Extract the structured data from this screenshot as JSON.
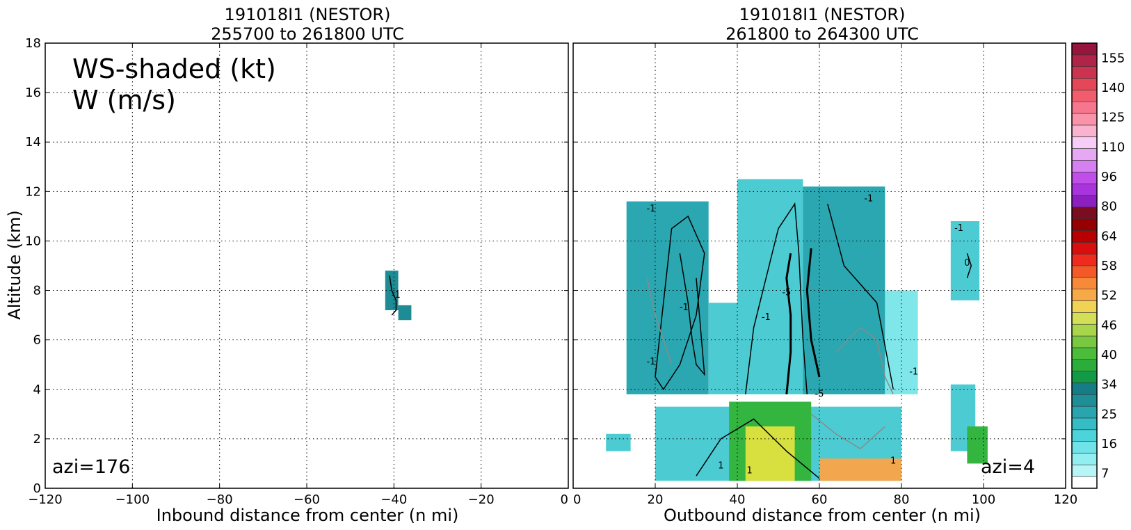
{
  "chart_data": [
    {
      "type": "heatmap",
      "title": "191018I1 (NESTOR)",
      "subtitle": "255700 to 261800 UTC",
      "xlabel": "Inbound distance from center (n mi)",
      "ylabel": "Altitude (km)",
      "xlim": [
        -120,
        0
      ],
      "ylim": [
        0,
        18
      ],
      "xticks": [
        "−120",
        "−100",
        "−80",
        "−60",
        "−40",
        "−20",
        "0"
      ],
      "xtick_values": [
        -120,
        -100,
        -80,
        -60,
        -40,
        -20,
        0
      ],
      "yticks": [
        "0",
        "2",
        "4",
        "6",
        "8",
        "10",
        "12",
        "14",
        "16",
        "18"
      ],
      "ytick_values": [
        0,
        2,
        4,
        6,
        8,
        10,
        12,
        14,
        16,
        18
      ],
      "grid": true,
      "annotations": {
        "legend_line1": "WS-shaded (kt)",
        "legend_line2": "W (m/s)",
        "azimuth": "azi=176"
      },
      "regions": [
        {
          "x0": -42,
          "x1": -39,
          "y0": 7.2,
          "y1": 8.8,
          "color": "#1e8c95"
        },
        {
          "x0": -39,
          "x1": -36,
          "y0": 6.8,
          "y1": 7.4,
          "color": "#1e8c95"
        }
      ],
      "contours": [
        {
          "level": "-1",
          "x": [
            -41,
            -40.5,
            -39.5,
            -39.5,
            -40.5
          ],
          "y": [
            8.6,
            8.0,
            7.6,
            7.2,
            7.0
          ],
          "color": "#000000"
        }
      ],
      "contour_labels": [
        {
          "text": "-1",
          "x": -39.5,
          "y": 7.7
        }
      ]
    },
    {
      "type": "heatmap",
      "title": "191018I1 (NESTOR)",
      "subtitle": "261800 to 264300 UTC",
      "xlabel": "Outbound distance from center (n mi)",
      "xlim": [
        0,
        120
      ],
      "ylim": [
        0,
        18
      ],
      "xticks": [
        "0",
        "20",
        "40",
        "60",
        "80",
        "100",
        "120"
      ],
      "xtick_values": [
        0,
        20,
        40,
        60,
        80,
        100,
        120
      ],
      "grid": true,
      "annotations": {
        "azimuth": "azi=4"
      },
      "regions": [
        {
          "x0": 13,
          "x1": 33,
          "y0": 3.8,
          "y1": 11.6,
          "color": "#2aa7b0"
        },
        {
          "x0": 33,
          "x1": 40,
          "y0": 3.8,
          "y1": 7.5,
          "color": "#4ccbd2"
        },
        {
          "x0": 40,
          "x1": 56,
          "y0": 3.8,
          "y1": 12.5,
          "color": "#4ccbd2"
        },
        {
          "x0": 56,
          "x1": 76,
          "y0": 3.8,
          "y1": 12.2,
          "color": "#2aa7b0"
        },
        {
          "x0": 76,
          "x1": 84,
          "y0": 3.8,
          "y1": 8.0,
          "color": "#7fe6ea"
        },
        {
          "x0": 20,
          "x1": 80,
          "y0": 0.3,
          "y1": 3.3,
          "color": "#4ccbd2"
        },
        {
          "x0": 38,
          "x1": 58,
          "y0": 0.3,
          "y1": 3.5,
          "color": "#33b540"
        },
        {
          "x0": 42,
          "x1": 54,
          "y0": 0.3,
          "y1": 2.5,
          "color": "#d8e040"
        },
        {
          "x0": 60,
          "x1": 80,
          "y0": 0.3,
          "y1": 1.2,
          "color": "#f2a64d"
        },
        {
          "x0": 92,
          "x1": 98,
          "y0": 1.5,
          "y1": 4.2,
          "color": "#4ccbd2"
        },
        {
          "x0": 92,
          "x1": 99,
          "y0": 7.6,
          "y1": 10.8,
          "color": "#4ccbd2"
        },
        {
          "x0": 96,
          "x1": 101,
          "y0": 1.0,
          "y1": 2.5,
          "color": "#33b540"
        },
        {
          "x0": 8,
          "x1": 14,
          "y0": 1.5,
          "y1": 2.2,
          "color": "#4ccbd2"
        }
      ],
      "contours": [
        {
          "level": "-1",
          "x": [
            20,
            24,
            28,
            32,
            30,
            26,
            22,
            20
          ],
          "y": [
            4.5,
            10.5,
            11.0,
            9.5,
            7.0,
            5.0,
            4.0,
            4.5
          ],
          "color": "#000000"
        },
        {
          "level": "-1",
          "x": [
            26,
            28,
            29,
            30,
            32,
            30
          ],
          "y": [
            9.5,
            7.5,
            6.0,
            5.0,
            4.6,
            8.5
          ],
          "color": "#000000"
        },
        {
          "level": "-1",
          "x": [
            42,
            44,
            50,
            54,
            55,
            56,
            57
          ],
          "y": [
            3.8,
            6.5,
            10.5,
            11.5,
            9.5,
            6.0,
            3.8
          ],
          "color": "#000000"
        },
        {
          "level": "-5",
          "x": [
            52,
            53,
            53,
            52,
            53
          ],
          "y": [
            3.8,
            5.5,
            7.0,
            8.5,
            9.5
          ],
          "color": "#000000"
        },
        {
          "level": "-5",
          "x": [
            58,
            57,
            58,
            60
          ],
          "y": [
            9.7,
            8.0,
            6.0,
            4.5
          ],
          "color": "#000000"
        },
        {
          "level": "-1",
          "x": [
            62,
            66,
            74,
            78
          ],
          "y": [
            11.5,
            9.0,
            7.5,
            4.0
          ],
          "color": "#000000"
        },
        {
          "level": "1",
          "x": [
            64,
            70,
            74,
            76,
            78
          ],
          "y": [
            5.5,
            6.5,
            6.0,
            4.5,
            3.8
          ],
          "color": "#8a8a8a"
        },
        {
          "level": "1",
          "x": [
            18,
            20,
            22,
            24
          ],
          "y": [
            8.5,
            7.0,
            6.0,
            5.0
          ],
          "color": "#8a8a8a"
        },
        {
          "level": "-1",
          "x": [
            30,
            36,
            44,
            52,
            60
          ],
          "y": [
            0.5,
            2.0,
            2.8,
            1.5,
            0.4
          ],
          "color": "#000000"
        },
        {
          "level": "1",
          "x": [
            58,
            64,
            70,
            76
          ],
          "y": [
            3.0,
            2.2,
            1.6,
            2.5
          ],
          "color": "#8a8a8a"
        },
        {
          "level": "0",
          "x": [
            96,
            97,
            96
          ],
          "y": [
            8.5,
            9.0,
            9.5
          ],
          "color": "#000000"
        }
      ],
      "contour_labels": [
        {
          "text": "-1",
          "x": 19,
          "y": 11.2
        },
        {
          "text": "-1",
          "x": 27,
          "y": 7.2
        },
        {
          "text": "-1",
          "x": 19,
          "y": 5.0
        },
        {
          "text": "-1",
          "x": 47,
          "y": 6.8
        },
        {
          "text": "-5",
          "x": 52,
          "y": 7.8
        },
        {
          "text": "-5",
          "x": 60,
          "y": 3.7
        },
        {
          "text": "-1",
          "x": 72,
          "y": 11.6
        },
        {
          "text": "-1",
          "x": 83,
          "y": 4.6
        },
        {
          "text": "-1",
          "x": 94,
          "y": 10.4
        },
        {
          "text": "0",
          "x": 96,
          "y": 9.0
        },
        {
          "text": "1",
          "x": 36,
          "y": 0.8
        },
        {
          "text": "1",
          "x": 43,
          "y": 0.6
        },
        {
          "text": "1",
          "x": 78,
          "y": 1.0
        }
      ]
    }
  ],
  "colorbar": {
    "ticks": [
      "7",
      "16",
      "25",
      "34",
      "40",
      "46",
      "52",
      "58",
      "64",
      "80",
      "96",
      "110",
      "125",
      "140",
      "155"
    ],
    "colors": [
      "#ffffff",
      "#b8f5f6",
      "#92eef1",
      "#6fe3e8",
      "#4dd3da",
      "#35bcc4",
      "#28a5ae",
      "#1e8e97",
      "#167c86",
      "#129a47",
      "#2aad3b",
      "#4bbd3a",
      "#79c940",
      "#a9d54a",
      "#d4df58",
      "#f0d354",
      "#f6aa47",
      "#f68a38",
      "#f45a28",
      "#ee2b1e",
      "#d90e0e",
      "#b80000",
      "#960000",
      "#7a0d20",
      "#8d1ec0",
      "#a934de",
      "#c14ee8",
      "#d67ff0",
      "#e6a8f3",
      "#f5cdf6",
      "#f9b3cf",
      "#f893a9",
      "#f6778d",
      "#f25d6e",
      "#e34758",
      "#cb3450",
      "#b02447",
      "#95153d"
    ]
  }
}
